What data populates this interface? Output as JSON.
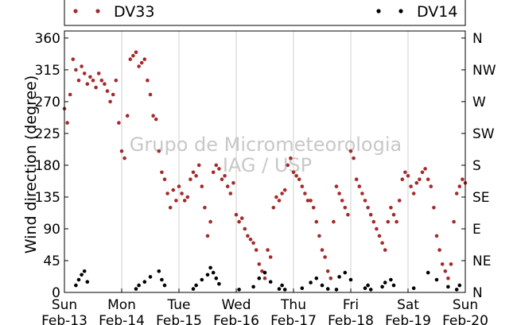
{
  "chart_data": {
    "type": "scatter",
    "title": "",
    "ylabel": "Wind direction (degree)",
    "xlabel": "",
    "ylim": [
      0,
      370
    ],
    "xlim": [
      0,
      7
    ],
    "grid": "vertical",
    "legend_placement": "top",
    "colors": {
      "DV33": "#a52a2a",
      "DV14": "#000000"
    },
    "x_ticks": [
      {
        "value": 0,
        "day": "Sun",
        "date": "Feb-13"
      },
      {
        "value": 1,
        "day": "Mon",
        "date": "Feb-14"
      },
      {
        "value": 2,
        "day": "Tue",
        "date": "Feb-15"
      },
      {
        "value": 3,
        "day": "Wed",
        "date": "Feb-16"
      },
      {
        "value": 4,
        "day": "Thu",
        "date": "Feb-17"
      },
      {
        "value": 5,
        "day": "Fri",
        "date": "Feb-18"
      },
      {
        "value": 6,
        "day": "Sat",
        "date": "Feb-19"
      },
      {
        "value": 7,
        "day": "Sun",
        "date": "Feb-20"
      }
    ],
    "y_ticks": [
      0,
      45,
      90,
      135,
      180,
      225,
      270,
      315,
      360
    ],
    "y2_ticks": [
      {
        "value": 0,
        "label": "N"
      },
      {
        "value": 45,
        "label": "NE"
      },
      {
        "value": 90,
        "label": "E"
      },
      {
        "value": 135,
        "label": "SE"
      },
      {
        "value": 180,
        "label": "S"
      },
      {
        "value": 225,
        "label": "SW"
      },
      {
        "value": 270,
        "label": "W"
      },
      {
        "value": 315,
        "label": "NW"
      },
      {
        "value": 360,
        "label": "N"
      }
    ],
    "series": [
      {
        "name": "DV33",
        "color": "#a52a2a",
        "x": [
          0.0,
          0.05,
          0.1,
          0.15,
          0.2,
          0.25,
          0.3,
          0.35,
          0.4,
          0.45,
          0.5,
          0.55,
          0.6,
          0.65,
          0.7,
          0.75,
          0.8,
          0.85,
          0.9,
          0.95,
          1.0,
          1.05,
          1.1,
          1.15,
          1.2,
          1.25,
          1.3,
          1.35,
          1.4,
          1.45,
          1.5,
          1.55,
          1.6,
          1.65,
          1.7,
          1.75,
          1.8,
          1.85,
          1.9,
          1.95,
          2.0,
          2.05,
          2.1,
          2.15,
          2.2,
          2.25,
          2.3,
          2.35,
          2.4,
          2.45,
          2.5,
          2.55,
          2.6,
          2.65,
          2.7,
          2.75,
          2.8,
          2.85,
          2.9,
          2.95,
          3.0,
          3.05,
          3.1,
          3.15,
          3.2,
          3.25,
          3.3,
          3.35,
          3.4,
          3.45,
          3.5,
          3.55,
          3.6,
          3.65,
          3.7,
          3.75,
          3.8,
          3.85,
          3.9,
          3.95,
          4.0,
          4.05,
          4.1,
          4.15,
          4.2,
          4.25,
          4.3,
          4.35,
          4.4,
          4.45,
          4.5,
          4.55,
          4.6,
          4.65,
          4.7,
          4.75,
          4.8,
          4.85,
          4.9,
          4.95,
          5.0,
          5.05,
          5.1,
          5.15,
          5.2,
          5.25,
          5.3,
          5.35,
          5.4,
          5.45,
          5.5,
          5.55,
          5.6,
          5.65,
          5.7,
          5.75,
          5.8,
          5.85,
          5.9,
          5.95,
          6.0,
          6.05,
          6.1,
          6.15,
          6.2,
          6.25,
          6.3,
          6.35,
          6.4,
          6.45,
          6.5,
          6.55,
          6.6,
          6.65,
          6.7,
          6.75,
          6.8,
          6.85,
          6.9,
          6.95,
          7.0
        ],
        "y": [
          260,
          240,
          280,
          330,
          315,
          300,
          320,
          310,
          295,
          305,
          300,
          290,
          310,
          300,
          295,
          285,
          270,
          280,
          300,
          240,
          200,
          190,
          250,
          330,
          335,
          340,
          320,
          325,
          330,
          300,
          280,
          250,
          245,
          200,
          170,
          160,
          140,
          120,
          145,
          130,
          150,
          140,
          130,
          135,
          160,
          170,
          165,
          180,
          150,
          120,
          80,
          100,
          170,
          180,
          175,
          160,
          165,
          150,
          140,
          155,
          110,
          100,
          105,
          90,
          80,
          75,
          70,
          60,
          40,
          30,
          20,
          60,
          50,
          120,
          135,
          130,
          140,
          145,
          180,
          190,
          170,
          165,
          160,
          150,
          140,
          130,
          130,
          120,
          100,
          80,
          60,
          50,
          30,
          20,
          100,
          150,
          140,
          130,
          120,
          110,
          200,
          190,
          160,
          150,
          140,
          130,
          120,
          110,
          100,
          90,
          80,
          70,
          60,
          100,
          120,
          110,
          100,
          130,
          160,
          170,
          165,
          150,
          140,
          155,
          160,
          170,
          175,
          160,
          150,
          120,
          80,
          60,
          40,
          30,
          20,
          40,
          100,
          140,
          150,
          160,
          155
        ]
      },
      {
        "name": "DV14",
        "color": "#000000",
        "x": [
          0.2,
          0.25,
          0.3,
          0.35,
          0.4,
          1.25,
          1.3,
          1.4,
          1.5,
          1.65,
          1.7,
          1.75,
          2.25,
          2.3,
          2.4,
          2.5,
          2.55,
          2.6,
          2.65,
          2.7,
          3.05,
          3.3,
          3.4,
          3.5,
          3.6,
          3.75,
          3.8,
          3.85,
          4.15,
          4.3,
          4.4,
          4.5,
          4.6,
          4.75,
          4.8,
          4.9,
          5.0,
          5.25,
          5.3,
          5.35,
          5.55,
          5.6,
          5.7,
          5.75,
          6.1,
          6.35,
          6.5,
          6.7,
          6.85,
          6.9
        ],
        "y": [
          10,
          18,
          25,
          30,
          15,
          5,
          10,
          15,
          22,
          30,
          18,
          10,
          5,
          10,
          18,
          25,
          35,
          28,
          20,
          12,
          4,
          8,
          20,
          28,
          15,
          5,
          10,
          4,
          6,
          14,
          20,
          10,
          5,
          4,
          22,
          28,
          18,
          6,
          10,
          4,
          8,
          14,
          18,
          10,
          6,
          28,
          18,
          8,
          4,
          10
        ]
      }
    ]
  },
  "watermark": {
    "line1": "Grupo de Micrometeorologia",
    "line2": "IAG / USP"
  }
}
